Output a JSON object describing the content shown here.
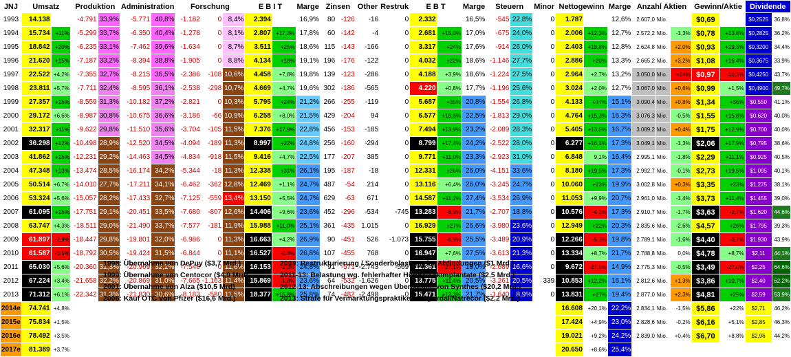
{
  "header": {
    "ticker": "JNJ",
    "umsatz": "Umsatz",
    "produktion": "Produktion",
    "administration": "Administration",
    "forschung": "Forschung",
    "ebit": "E B I T",
    "marge1": "Marge",
    "zinsen": "Zinsen",
    "other": "Other",
    "restruk": "Restruk",
    "ebt": "E B T",
    "marge2": "Marge",
    "steuern": "Steuern",
    "minor": "Minor",
    "nettogewinn": "Nettogewinn",
    "marge3": "Marge",
    "anzahl": "Anzahl Aktien",
    "gewinn": "Gewinn/Aktie",
    "dividende": "Dividende"
  },
  "rows": [
    [
      "1993",
      "14.138",
      "",
      "-4.791",
      "33,9%",
      "-5.771",
      "40,8%",
      "-1.182",
      "0",
      "8,4%",
      "2.394",
      "",
      "16,9%",
      "80",
      "-126",
      "-16",
      "0",
      "2.332",
      "",
      "16,5%",
      "-545",
      "22,8%",
      "0",
      "1.787",
      "",
      "12,6%",
      "2.607,0",
      "Mio.",
      "",
      "$0,69",
      "",
      "$0,2525",
      "36,8%"
    ],
    [
      "1994",
      "15.734",
      "+11%",
      "-5.299",
      "33,7%",
      "-6.350",
      "40,4%",
      "-1.278",
      "0",
      "8,1%",
      "2.807",
      "+17,3%",
      "17,8%",
      "60",
      "-142",
      "-4",
      "0",
      "2.681",
      "+15,0%",
      "17,0%",
      "-675",
      "24,0%",
      "0",
      "2.006",
      "+12,3%",
      "12,7%",
      "2.572,2",
      "Mio.",
      "-1,3%",
      "$0,78",
      "+13,8%",
      "$0,2825",
      "36,2%"
    ],
    [
      "1995",
      "18.842",
      "+20%",
      "-6.235",
      "33,1%",
      "-7.462",
      "39,6%",
      "-1.634",
      "0",
      "8,7%",
      "3.511",
      "+25%",
      "18,6%",
      "115",
      "-143",
      "-166",
      "0",
      "3.317",
      "+24%",
      "17,6%",
      "-914",
      "26,0%",
      "0",
      "2.403",
      "+19,8%",
      "12,8%",
      "2.624,8",
      "Mio.",
      "+2,0%",
      "$0,93",
      "+19,3%",
      "$0,3200",
      "34,4%"
    ],
    [
      "1996",
      "21.620",
      "+15%",
      "-7.187",
      "33,2%",
      "-8.394",
      "38,8%",
      "-1.905",
      "0",
      "8,8%",
      "4.134",
      "+18%",
      "19,1%",
      "196",
      "-176",
      "-122",
      "0",
      "4.032",
      "+22%",
      "18,6%",
      "-1.146",
      "27,7%",
      "0",
      "2.886",
      "+20%",
      "13,3%",
      "2.665,2",
      "Mio.",
      "+3,2%",
      "$1,08",
      "+16,4%",
      "$0,3675",
      "33,9%"
    ],
    [
      "1997",
      "22.522",
      "+4,2%",
      "-7.355",
      "32,7%",
      "-8.215",
      "36,5%",
      "-2.386",
      "-108",
      "10,6%",
      "4.458",
      "+7,8%",
      "19,8%",
      "139",
      "-123",
      "-286",
      "0",
      "4.188",
      "+3,9%",
      "18,6%",
      "-1.224",
      "27,5%",
      "0",
      "2.964",
      "+2,7%",
      "13,2%",
      "3.050,0",
      "Mio.",
      "+14%",
      "$0,97",
      "-10,3%",
      "$0,4250",
      "43,7%"
    ],
    [
      "1998",
      "23.811",
      "+5,7%",
      "-7.711",
      "32,4%",
      "-8.595",
      "36,1%",
      "-2.538",
      "-298",
      "10,7%",
      "4.669",
      "+4,7%",
      "19,6%",
      "302",
      "-186",
      "-565",
      "0",
      "4.220",
      "+0,8%",
      "17,7%",
      "-1.196",
      "25,6%",
      "0",
      "3.024",
      "+2,0%",
      "12,7%",
      "3.067,0",
      "Mio.",
      "+0,6%",
      "$0,99",
      "+1,5%",
      "$0,4900",
      "49,7%"
    ],
    [
      "1999",
      "27.357",
      "+15%",
      "-8.559",
      "31,3%",
      "-10.182",
      "37,2%",
      "-2.821",
      "0",
      "10,3%",
      "5.795",
      "+24%",
      "21,2%",
      "266",
      "-255",
      "-119",
      "0",
      "5.687",
      "+35%",
      "20,8%",
      "-1.554",
      "26,8%",
      "0",
      "4.133",
      "+37%",
      "15,1%",
      "3.090,4",
      "Mio.",
      "+0,8%",
      "$1,34",
      "+36%",
      "$0,550",
      "41,1%"
    ],
    [
      "2000",
      "29.172",
      "+6,6%",
      "-8.987",
      "30,8%",
      "-10.675",
      "36,6%",
      "-3.186",
      "-66",
      "10,9%",
      "6.258",
      "+8,0%",
      "21,5%",
      "429",
      "-204",
      "94",
      "0",
      "6.577",
      "+15,6%",
      "22,5%",
      "-1.813",
      "29,0%",
      "0",
      "4.764",
      "+15,3%",
      "16,3%",
      "3.076,3",
      "Mio.",
      "-0,5%",
      "$1,55",
      "+15,8%",
      "$0,620",
      "40,0%"
    ],
    [
      "2001",
      "32.317",
      "+11%",
      "-9.622",
      "29,8%",
      "-11.510",
      "35,6%",
      "-3.704",
      "-105",
      "11,5%",
      "7.376",
      "+17,9%",
      "22,8%",
      "456",
      "-153",
      "-185",
      "0",
      "7.494",
      "+13,9%",
      "23,2%",
      "-2.089",
      "28,3%",
      "0",
      "5.405",
      "+13,5%",
      "16,7%",
      "3.089,2",
      "Mio.",
      "+0,4%",
      "$1,75",
      "+12,9%",
      "$0,700",
      "40,0%"
    ],
    [
      "2002",
      "36.298",
      "+12%",
      "-10.498",
      "28,9%",
      "-12.520",
      "34,5%",
      "-4.094",
      "-189",
      "11,3%",
      "8.997",
      "+22%",
      "24,8%",
      "256",
      "-160",
      "-294",
      "0",
      "8.799",
      "+17,4%",
      "24,2%",
      "-2.522",
      "28,0%",
      "0",
      "6.277",
      "+16,1%",
      "17,3%",
      "3.049,1",
      "Mio.",
      "-1,3%",
      "$2,06",
      "+17,9%",
      "$0,795",
      "38,6%"
    ],
    [
      "2003",
      "41.862",
      "+15%",
      "-12.231",
      "29,2%",
      "-14.463",
      "34,5%",
      "-4.834",
      "-918",
      "11,5%",
      "9.416",
      "+4,7%",
      "22,5%",
      "177",
      "-207",
      "385",
      "0",
      "9.771",
      "+11,0%",
      "23,3%",
      "-2.923",
      "31,0%",
      "0",
      "6.848",
      "9,1%",
      "16,4%",
      "2.995,1",
      "Mio.",
      "-1,8%",
      "$2,29",
      "+11,1%",
      "$0,925",
      "40,5%"
    ],
    [
      "2004",
      "47.348",
      "+13%",
      "-13.474",
      "28,5%",
      "-16.174",
      "34,2%",
      "-5.344",
      "-18",
      "11,3%",
      "12.338",
      "+31%",
      "26,1%",
      "195",
      "-187",
      "-18",
      "0",
      "12.331",
      "+26%",
      "26,0%",
      "-4.151",
      "33,6%",
      "0",
      "8.180",
      "+19,5%",
      "17,3%",
      "2.992,7",
      "Mio.",
      "-0,1%",
      "$2,73",
      "+19,5%",
      "$1,095",
      "40,1%"
    ],
    [
      "2005",
      "50.514",
      "+6,7%",
      "-14.010",
      "27,7%",
      "-17.211",
      "34,1%",
      "-6.462",
      "-362",
      "12,8%",
      "12.469",
      "+1,1%",
      "24,7%",
      "487",
      "-54",
      "214",
      "0",
      "13.116",
      "+6,4%",
      "26,0%",
      "-3.245",
      "24,7%",
      "0",
      "10.060",
      "+23%",
      "19,9%",
      "3.002,8",
      "Mio.",
      "+0,3%",
      "$3,35",
      "+23%",
      "$1,275",
      "38,1%"
    ],
    [
      "2006",
      "53.324",
      "+5,6%",
      "-15.057",
      "28,2%",
      "-17.433",
      "32,7%",
      "-7.125",
      "-559",
      "13,4%",
      "13.150",
      "+5,5%",
      "24,7%",
      "629",
      "-63",
      "671",
      "0",
      "14.587",
      "+11,2%",
      "27,4%",
      "-3.534",
      "26,9%",
      "0",
      "11.053",
      "+9,9%",
      "20,7%",
      "2.961,0",
      "Mio.",
      "-1,4%",
      "$3,73",
      "+11,4%",
      "$1,455",
      "39,0%"
    ],
    [
      "2007",
      "61.095",
      "+15%",
      "-17.751",
      "29,1%",
      "-20.451",
      "33,5%",
      "-7.680",
      "-807",
      "12,6%",
      "14.406",
      "+9,6%",
      "23,6%",
      "452",
      "-296",
      "-534",
      "-745",
      "13.283",
      "-8,9%",
      "21,7%",
      "-2.707",
      "18,8%",
      "0",
      "10.576",
      "-4,3%",
      "17,3%",
      "2.910,7",
      "Mio.",
      "-1,7%",
      "$3,63",
      "-2,7%",
      "$1,620",
      "44,6%"
    ],
    [
      "2008",
      "63.747",
      "+4,3%",
      "-18.511",
      "29,0%",
      "-21.490",
      "33,7%",
      "-7.577",
      "-181",
      "11,9%",
      "15.988",
      "+11,0%",
      "25,1%",
      "361",
      "-435",
      "1.015",
      "0",
      "16.929",
      "+27%",
      "26,6%",
      "-3.980",
      "23,6%",
      "0",
      "12.949",
      "+22%",
      "20,3%",
      "2.835,6",
      "Mio.",
      "-2,6%",
      "$4,57",
      "+26%",
      "$1,795",
      "39,3%"
    ],
    [
      "2009",
      "61.897",
      "-2,9%",
      "-18.447",
      "29,8%",
      "-19.801",
      "32,0%",
      "-6.986",
      "0",
      "11,3%",
      "16.663",
      "+4,2%",
      "26,9%",
      "90",
      "-451",
      "526",
      "-1.073",
      "15.755",
      "-6,9%",
      "25,5%",
      "-3.489",
      "20,9%",
      "0",
      "12.266",
      "-5,3%",
      "19,8%",
      "2.789,1",
      "Mio.",
      "-1,6%",
      "$4,40",
      "-3,7%",
      "$1,930",
      "43,9%"
    ],
    [
      "2010",
      "61.587",
      "-0,5%",
      "-18.792",
      "30,5%",
      "-19.424",
      "31,5%",
      "-6.844",
      "0",
      "11,1%",
      "16.527",
      "-0,8%",
      "26,8%",
      "107",
      "-455",
      "768",
      "0",
      "16.947",
      "+7,6%",
      "27,5%",
      "-3.613",
      "21,3%",
      "0",
      "13.334",
      "+8,7%",
      "21,7%",
      "2.788,8",
      "Mio.",
      "0,0%",
      "$4,78",
      "+8,7%",
      "$2,11",
      "44,1%"
    ],
    [
      "2011",
      "65.030",
      "+5,6%",
      "-20.360",
      "31,3%",
      "-20.969",
      "32,2%",
      "-7.548",
      "0",
      "11,6%",
      "16.153",
      "-2,3%",
      "24,8%",
      "91",
      "-571",
      "-2.743",
      "-569",
      "12.361",
      "-27,1%",
      "19,0%",
      "-2.689",
      "16,6%",
      "0",
      "9.672",
      "-27,5%",
      "14,9%",
      "2.775,3",
      "Mio.",
      "-0,5%",
      "$3,49",
      "-27,0%",
      "$2,25",
      "64,6%"
    ],
    [
      "2012",
      "67.224",
      "+3,4%",
      "-21.658",
      "32,2%",
      "-20.869",
      "31,0%",
      "-7.665",
      "-1.163",
      "11,4%",
      "15.869",
      "-1,8%",
      "23,6%",
      "64",
      "-532",
      "-1.626",
      "0",
      "13.775",
      "+11,4%",
      "20,5%",
      "-3.261",
      "20,5%",
      "339",
      "10.853",
      "+12,2%",
      "16,1%",
      "2.812,6",
      "Mio.",
      "+1,3%",
      "$3,86",
      "+10,7%",
      "$2,40",
      "62,2%"
    ],
    [
      "2013",
      "71.312",
      "+6,1%",
      "-22.342",
      "31,3%",
      "-21.830",
      "30,6%",
      "-8.183",
      "-580",
      "11,5%",
      "18.377",
      "+15,8%",
      "25,8%",
      "74",
      "-482",
      "-2.498",
      "0",
      "15.471",
      "+12,3%",
      "21,7%",
      "-1.640",
      "8,9%",
      "0",
      "13.831",
      "+27%",
      "19,4%",
      "2.877,0",
      "Mio.",
      "+2,3%",
      "$4,81",
      "+25%",
      "$2,59",
      "53,9%"
    ]
  ],
  "estimates": [
    [
      "2014e",
      "74.741",
      "+4,8%",
      "16.608",
      "+20,1%",
      "22,2%",
      "2.834,1",
      "Mio.",
      "-1,5%",
      "$5,86",
      "+22%",
      "$2,71",
      "46,2%"
    ],
    [
      "2015e",
      "75.834",
      "+1,5%",
      "17.424",
      "+4,9%",
      "23,0%",
      "2.828,6",
      "Mio.",
      "-0,2%",
      "$6,16",
      "+5,1%",
      "$2,85",
      "46,3%"
    ],
    [
      "2016e",
      "78.492",
      "+3,5%",
      "19.021",
      "+9,2%",
      "24,2%",
      "2.839,0",
      "Mio.",
      "+0,4%",
      "$6,70",
      "+8,8%",
      "$2,96",
      "44,2%"
    ],
    [
      "2017e",
      "81.389",
      "+3,7%",
      "20.650",
      "+8,6%",
      "25,4%",
      "",
      "",
      "",
      "",
      "",
      "",
      ""
    ]
  ],
  "notes": [
    "1998: Übernahme von DePuy ($3,7 Mrd.)",
    "1999: Übernahme von Centocor ($4,9 Mrd)",
    "2001: Übernahme von Alza ($10,5 Mrd)",
    "2006: Kauf OTC von Pfizer ($16,6 Mrd.)",
    "2009: Restrukturierung / Sonderbelastung für Abfindungen ($1 Mrd.)",
    "2011-13: Belastung wg. fehlerhafter Hüftgelenkimplantate ($2,5 Mrd.)",
    "2012-13: Abschreibungen wegen Übernahme von Synthes ($20,2 Mrd.)",
    "2013: Strafe für Vermarktungspraktiken Risperdal/Natrecor ($2,2 Mrd.)"
  ],
  "colors": {
    "yellow": "#ffff00",
    "green": "#00d000",
    "lightgreen": "#88ff88",
    "pink": "#ff66ff",
    "pink2": "#ee82ee",
    "lightpink": "#ffc0ff",
    "brown": "#8b4513",
    "red": "#ff0000",
    "blue": "#4499ff",
    "lightblue": "#66ccff",
    "teal": "#44dddd",
    "navy": "#0000cc",
    "darkgreen": "#006400",
    "orange": "#ff9900",
    "gray": "#c0c0c0"
  }
}
